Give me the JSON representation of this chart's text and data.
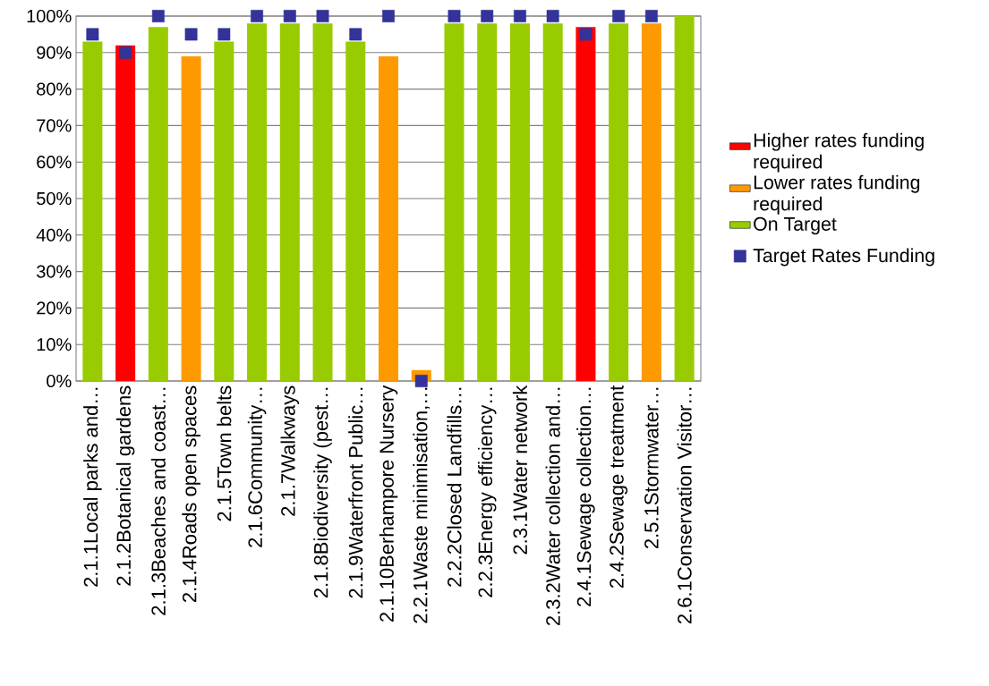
{
  "chart_data": {
    "type": "bar",
    "categories": [
      "2.1.1Local parks and…",
      "2.1.2Botanical gardens",
      "2.1.3Beaches and coast…",
      "2.1.4Roads open spaces",
      "2.1.5Town belts",
      "2.1.6Community…",
      "2.1.7Walkways",
      "2.1.8Biodiversity (pest…",
      "2.1.9Waterfront Public…",
      "2.1.10Berhampore Nursery",
      "2.2.1Waste minimisation,…",
      "2.2.2Closed Landfills…",
      "2.2.3Energy efficiency…",
      "2.3.1Water network",
      "2.3.2Water collection and…",
      "2.4.1Sewage collection…",
      "2.4.2Sewage treatment",
      "2.5.1Stormwater…",
      "2.6.1Conservation Visitor…"
    ],
    "series": [
      {
        "name": "Higher rates funding required",
        "color": "#ff0000",
        "values": [
          null,
          92,
          null,
          null,
          null,
          null,
          null,
          null,
          null,
          null,
          null,
          null,
          null,
          null,
          null,
          97,
          null,
          null,
          null
        ]
      },
      {
        "name": "Lower rates funding required",
        "color": "#ff9900",
        "values": [
          null,
          null,
          null,
          89,
          null,
          null,
          null,
          null,
          null,
          89,
          3,
          null,
          null,
          null,
          null,
          null,
          null,
          98,
          null
        ]
      },
      {
        "name": "On Target",
        "color": "#99cc00",
        "values": [
          93,
          null,
          97,
          null,
          93,
          98,
          98,
          98,
          93,
          null,
          null,
          98,
          98,
          98,
          98,
          null,
          98,
          null,
          100
        ]
      },
      {
        "name": "Target Rates Funding",
        "type": "scatter",
        "marker": "square",
        "color": "#333399",
        "values": [
          95,
          90,
          100,
          95,
          95,
          100,
          100,
          100,
          95,
          100,
          0,
          100,
          100,
          100,
          100,
          95,
          100,
          100,
          null
        ]
      }
    ],
    "ylim": [
      0,
      100
    ],
    "yticks": [
      {
        "value": 0,
        "label": "0%"
      },
      {
        "value": 10,
        "label": "10%"
      },
      {
        "value": 20,
        "label": "20%"
      },
      {
        "value": 30,
        "label": "30%"
      },
      {
        "value": 40,
        "label": "40%"
      },
      {
        "value": 50,
        "label": "50%"
      },
      {
        "value": 60,
        "label": "60%"
      },
      {
        "value": 70,
        "label": "70%"
      },
      {
        "value": 80,
        "label": "80%"
      },
      {
        "value": 90,
        "label": "90%"
      },
      {
        "value": 100,
        "label": "100%"
      }
    ],
    "grid": "y",
    "legend": "right"
  }
}
